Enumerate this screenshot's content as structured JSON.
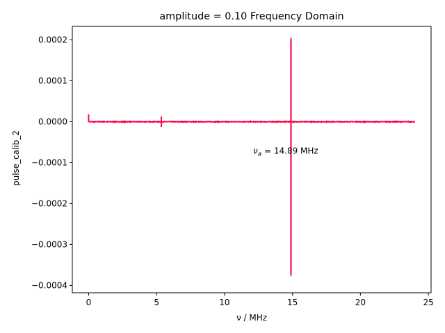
{
  "chart_data": {
    "type": "line",
    "title": "amplitude = 0.10 Frequency Domain",
    "xlabel": "ν / MHz",
    "ylabel": "pulse_calib_2",
    "xlim": [
      -1.2,
      25.2
    ],
    "ylim": [
      -0.000418,
      0.000233
    ],
    "grid": false,
    "x_ticks": [
      0,
      5,
      10,
      15,
      20,
      25
    ],
    "x_tick_labels": [
      "0",
      "5",
      "10",
      "15",
      "20",
      "25"
    ],
    "y_ticks": [
      0.0002,
      0.0001,
      0.0,
      -0.0001,
      -0.0002,
      -0.0003,
      -0.0004
    ],
    "y_tick_labels": [
      "0.0002",
      "0.0001",
      "0.0000",
      "−0.0001",
      "−0.0002",
      "−0.0003",
      "−0.0004"
    ],
    "annotation": {
      "text_parts": [
        "ν",
        "a",
        " = 14.89 MHz"
      ],
      "x": 12.1,
      "y": -7.8e-05
    },
    "series": [
      {
        "color": "#ff0044",
        "features": [
          {
            "x": 0.0,
            "ymin": 0.0,
            "ymax": 1.8e-05
          },
          {
            "x": 5.35,
            "ymin": -1.3e-05,
            "ymax": 1.3e-05
          },
          {
            "x": 14.89,
            "ymin": -0.000373,
            "ymax": 0.000202
          }
        ]
      },
      {
        "color": "#cc44cc",
        "features": [
          {
            "x": 14.89,
            "ymin": -0.000378,
            "ymax": 0.000206
          }
        ]
      }
    ],
    "x_range": [
      0.0,
      24.0
    ]
  }
}
